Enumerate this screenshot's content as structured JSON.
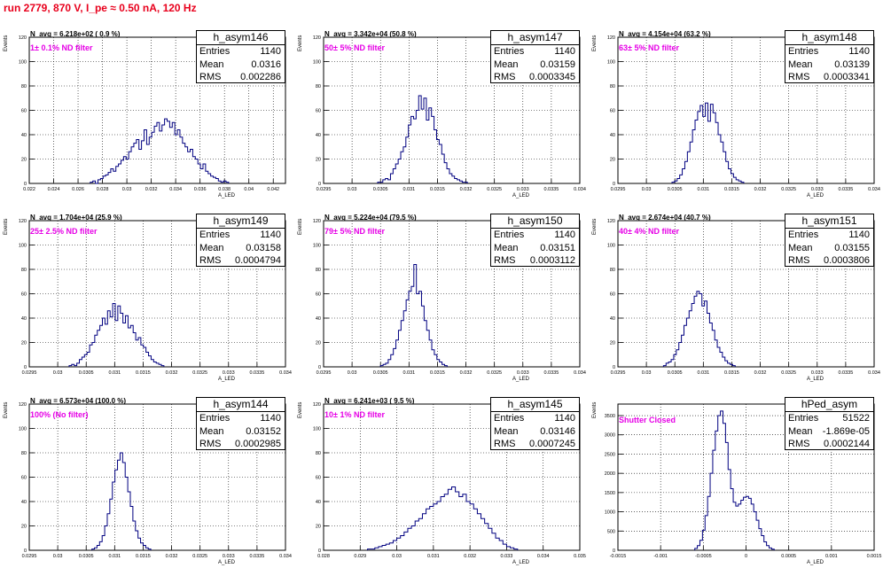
{
  "run_title": "run 2779,   870 V, I_pe ≈ 0.50 nA, 120 Hz",
  "colors": {
    "histogram": "#000080",
    "grid": "#000000",
    "title": "#e8001c",
    "filter_label": "#e600e6"
  },
  "axis_labels": {
    "x": "A_LED",
    "y": "Events"
  },
  "chart_data": [
    {
      "type": "histogram",
      "name": "h_asym146",
      "navg": "N_avg = 6.218e+02 ( 0.9 %)",
      "filter": "1± 0.1% ND filter",
      "stats": {
        "entries": "1140",
        "mean": "0.0316",
        "rms": "0.002286"
      },
      "xlim": [
        0.022,
        0.043
      ],
      "ylim": [
        0,
        120
      ],
      "xticks": [
        0.022,
        0.024,
        0.026,
        0.028,
        0.03,
        0.032,
        0.034,
        0.036,
        0.038,
        0.04,
        0.042
      ],
      "xtick_labels": [
        "0.022",
        "0.024",
        "0.026",
        "0.028",
        "0.03",
        "0.032",
        "0.034",
        "0.036",
        "0.038",
        "0.04",
        "0.042"
      ],
      "yticks": [
        0,
        20,
        40,
        60,
        80,
        100,
        120
      ],
      "bins_start": 0.027,
      "bin_width": 0.00021,
      "counts": [
        1,
        2,
        0,
        3,
        4,
        6,
        7,
        9,
        12,
        10,
        14,
        16,
        19,
        22,
        20,
        26,
        30,
        33,
        36,
        28,
        35,
        44,
        32,
        38,
        42,
        47,
        50,
        43,
        48,
        53,
        51,
        46,
        50,
        40,
        44,
        38,
        33,
        30,
        26,
        28,
        22,
        20,
        16,
        12,
        16,
        10,
        8,
        6,
        5,
        4,
        2,
        1,
        2,
        1
      ]
    },
    {
      "type": "histogram",
      "name": "h_asym147",
      "navg": "N_avg = 3.342e+04 (50.8 %)",
      "filter": "50± 5% ND filter",
      "stats": {
        "entries": "1140",
        "mean": "0.03159",
        "rms": "0.0003345"
      },
      "xlim": [
        0.0295,
        0.034
      ],
      "ylim": [
        0,
        120
      ],
      "xticks": [
        0.0295,
        0.03,
        0.0305,
        0.031,
        0.0315,
        0.032,
        0.0325,
        0.033,
        0.0335,
        0.034
      ],
      "xtick_labels": [
        "0.0295",
        "0.03",
        "0.0305",
        "0.031",
        "0.0315",
        "0.032",
        "0.0325",
        "0.033",
        "0.0335",
        "0.034"
      ],
      "yticks": [
        0,
        20,
        40,
        60,
        80,
        100,
        120
      ],
      "bins_start": 0.03045,
      "bin_width": 4.5e-05,
      "counts": [
        1,
        1,
        3,
        4,
        3,
        8,
        12,
        16,
        20,
        26,
        30,
        38,
        48,
        55,
        53,
        60,
        72,
        61,
        70,
        52,
        62,
        55,
        44,
        36,
        32,
        24,
        17,
        12,
        8,
        6,
        4,
        3,
        2,
        1,
        1
      ]
    },
    {
      "type": "histogram",
      "name": "h_asym148",
      "navg": "N_avg = 4.154e+04 (63.2 %)",
      "filter": "63± 5% ND filter",
      "stats": {
        "entries": "1140",
        "mean": "0.03139",
        "rms": "0.0003341"
      },
      "xlim": [
        0.0295,
        0.034
      ],
      "ylim": [
        0,
        120
      ],
      "xticks": [
        0.0295,
        0.03,
        0.0305,
        0.031,
        0.0315,
        0.032,
        0.0325,
        0.033,
        0.0335,
        0.034
      ],
      "xtick_labels": [
        "0.0295",
        "0.03",
        "0.0305",
        "0.031",
        "0.0315",
        "0.032",
        "0.0325",
        "0.033",
        "0.0335",
        "0.034"
      ],
      "yticks": [
        0,
        20,
        40,
        60,
        80,
        100,
        120
      ],
      "bins_start": 0.03045,
      "bin_width": 4.5e-05,
      "counts": [
        1,
        2,
        4,
        7,
        12,
        18,
        26,
        34,
        44,
        52,
        59,
        64,
        55,
        66,
        51,
        65,
        58,
        50,
        40,
        34,
        26,
        18,
        12,
        8,
        5,
        3,
        2,
        1
      ]
    },
    {
      "type": "histogram",
      "name": "h_asym149",
      "navg": "N_avg = 1.704e+04 (25.9 %)",
      "filter": "25± 2.5% ND filter",
      "stats": {
        "entries": "1140",
        "mean": "0.03158",
        "rms": "0.0004794"
      },
      "xlim": [
        0.0295,
        0.034
      ],
      "ylim": [
        0,
        120
      ],
      "xticks": [
        0.0295,
        0.03,
        0.0305,
        0.031,
        0.0315,
        0.032,
        0.0325,
        0.033,
        0.0335,
        0.034
      ],
      "xtick_labels": [
        "0.0295",
        "0.03",
        "0.0305",
        "0.031",
        "0.0315",
        "0.032",
        "0.0325",
        "0.033",
        "0.0335",
        "0.034"
      ],
      "yticks": [
        0,
        20,
        40,
        60,
        80,
        100,
        120
      ],
      "bins_start": 0.0302,
      "bin_width": 4.5e-05,
      "counts": [
        1,
        2,
        1,
        3,
        6,
        8,
        10,
        12,
        18,
        20,
        26,
        30,
        34,
        40,
        35,
        46,
        41,
        52,
        38,
        50,
        44,
        36,
        42,
        32,
        34,
        28,
        22,
        24,
        18,
        16,
        12,
        9,
        6,
        4,
        3,
        2,
        1
      ]
    },
    {
      "type": "histogram",
      "name": "h_asym150",
      "navg": "N_avg = 5.224e+04 (79.5 %)",
      "filter": "79± 5% ND filter",
      "stats": {
        "entries": "1140",
        "mean": "0.03151",
        "rms": "0.0003112"
      },
      "xlim": [
        0.0295,
        0.034
      ],
      "ylim": [
        0,
        120
      ],
      "xticks": [
        0.0295,
        0.03,
        0.0305,
        0.031,
        0.0315,
        0.032,
        0.0325,
        0.033,
        0.0335,
        0.034
      ],
      "xtick_labels": [
        "0.0295",
        "0.03",
        "0.0305",
        "0.031",
        "0.0315",
        "0.032",
        "0.0325",
        "0.033",
        "0.0335",
        "0.034"
      ],
      "yticks": [
        0,
        20,
        40,
        60,
        80,
        100,
        120
      ],
      "bins_start": 0.0305,
      "bin_width": 4.5e-05,
      "counts": [
        1,
        2,
        3,
        6,
        10,
        15,
        22,
        30,
        38,
        46,
        55,
        62,
        66,
        84,
        60,
        62,
        50,
        38,
        30,
        22,
        14,
        10,
        6,
        4,
        2,
        1
      ]
    },
    {
      "type": "histogram",
      "name": "h_asym151",
      "navg": "N_avg = 2.674e+04 (40.7 %)",
      "filter": "40± 4% ND filter",
      "stats": {
        "entries": "1140",
        "mean": "0.03155",
        "rms": "0.0003806"
      },
      "xlim": [
        0.0295,
        0.034
      ],
      "ylim": [
        0,
        120
      ],
      "xticks": [
        0.0295,
        0.03,
        0.0305,
        0.031,
        0.0315,
        0.032,
        0.0325,
        0.033,
        0.0335,
        0.034
      ],
      "xtick_labels": [
        "0.0295",
        "0.03",
        "0.0305",
        "0.031",
        "0.0315",
        "0.032",
        "0.0325",
        "0.033",
        "0.0335",
        "0.034"
      ],
      "yticks": [
        0,
        20,
        40,
        60,
        80,
        100,
        120
      ],
      "bins_start": 0.0303,
      "bin_width": 4.5e-05,
      "counts": [
        1,
        3,
        4,
        6,
        10,
        14,
        20,
        26,
        34,
        40,
        46,
        52,
        58,
        62,
        60,
        50,
        54,
        44,
        36,
        30,
        22,
        16,
        12,
        8,
        5,
        3,
        2,
        1
      ]
    },
    {
      "type": "histogram",
      "name": "h_asym144",
      "navg": "N_avg = 6.573e+04 (100.0 %)",
      "filter": "100% (No filter)",
      "stats": {
        "entries": "1140",
        "mean": "0.03152",
        "rms": "0.0002985"
      },
      "xlim": [
        0.0295,
        0.034
      ],
      "ylim": [
        0,
        120
      ],
      "xticks": [
        0.0295,
        0.03,
        0.0305,
        0.031,
        0.0315,
        0.032,
        0.0325,
        0.033,
        0.0335,
        0.034
      ],
      "xtick_labels": [
        "0.0295",
        "0.03",
        "0.0305",
        "0.031",
        "0.0315",
        "0.032",
        "0.0325",
        "0.033",
        "0.0335",
        "0.034"
      ],
      "yticks": [
        0,
        20,
        40,
        60,
        80,
        100,
        120
      ],
      "bins_start": 0.0306,
      "bin_width": 4.5e-05,
      "counts": [
        1,
        2,
        4,
        7,
        12,
        20,
        30,
        42,
        56,
        66,
        74,
        80,
        72,
        60,
        48,
        36,
        24,
        16,
        10,
        6,
        4,
        2,
        1
      ]
    },
    {
      "type": "histogram",
      "name": "h_asym145",
      "navg": "N_avg = 6.241e+03 ( 9.5 %)",
      "filter": "10± 1% ND filter",
      "stats": {
        "entries": "1140",
        "mean": "0.03146",
        "rms": "0.0007245"
      },
      "xlim": [
        0.028,
        0.035
      ],
      "ylim": [
        0,
        120
      ],
      "xticks": [
        0.028,
        0.029,
        0.03,
        0.031,
        0.032,
        0.033,
        0.034,
        0.035
      ],
      "xtick_labels": [
        "0.028",
        "0.029",
        "0.03",
        "0.031",
        "0.032",
        "0.033",
        "0.034",
        "0.035"
      ],
      "yticks": [
        0,
        20,
        40,
        60,
        80,
        100,
        120
      ],
      "bins_start": 0.0292,
      "bin_width": 0.0001,
      "counts": [
        1,
        1,
        2,
        3,
        4,
        5,
        6,
        8,
        10,
        12,
        15,
        18,
        20,
        24,
        26,
        30,
        34,
        36,
        38,
        40,
        44,
        46,
        50,
        52,
        48,
        44,
        46,
        40,
        38,
        34,
        30,
        26,
        22,
        18,
        14,
        10,
        8,
        5,
        3,
        2,
        1
      ]
    },
    {
      "type": "histogram",
      "name": "hPed_asym",
      "navg": "",
      "filter": "Shutter Closed",
      "stats": {
        "entries": "51522",
        "mean": "-1.869e-05",
        "rms": "0.0002144"
      },
      "xlim": [
        -0.0015,
        0.0015
      ],
      "ylim": [
        0,
        3800
      ],
      "xticks": [
        -0.0015,
        -0.001,
        -0.0005,
        0,
        0.0005,
        0.001,
        0.0015
      ],
      "xtick_labels": [
        "-0.0015",
        "-0.001",
        "-0.0005",
        "0",
        "0.0005",
        "0.001",
        "0.0015"
      ],
      "yticks": [
        0,
        500,
        1000,
        1500,
        2000,
        2500,
        3000,
        3500
      ],
      "bins_start": -0.0006,
      "bin_width": 3e-05,
      "counts": [
        50,
        120,
        260,
        520,
        900,
        1400,
        2000,
        2600,
        3100,
        3500,
        3620,
        3300,
        2800,
        2100,
        1600,
        1250,
        1150,
        1200,
        1300,
        1380,
        1400,
        1350,
        1200,
        1000,
        780,
        560,
        380,
        220,
        120,
        60,
        30
      ]
    }
  ]
}
